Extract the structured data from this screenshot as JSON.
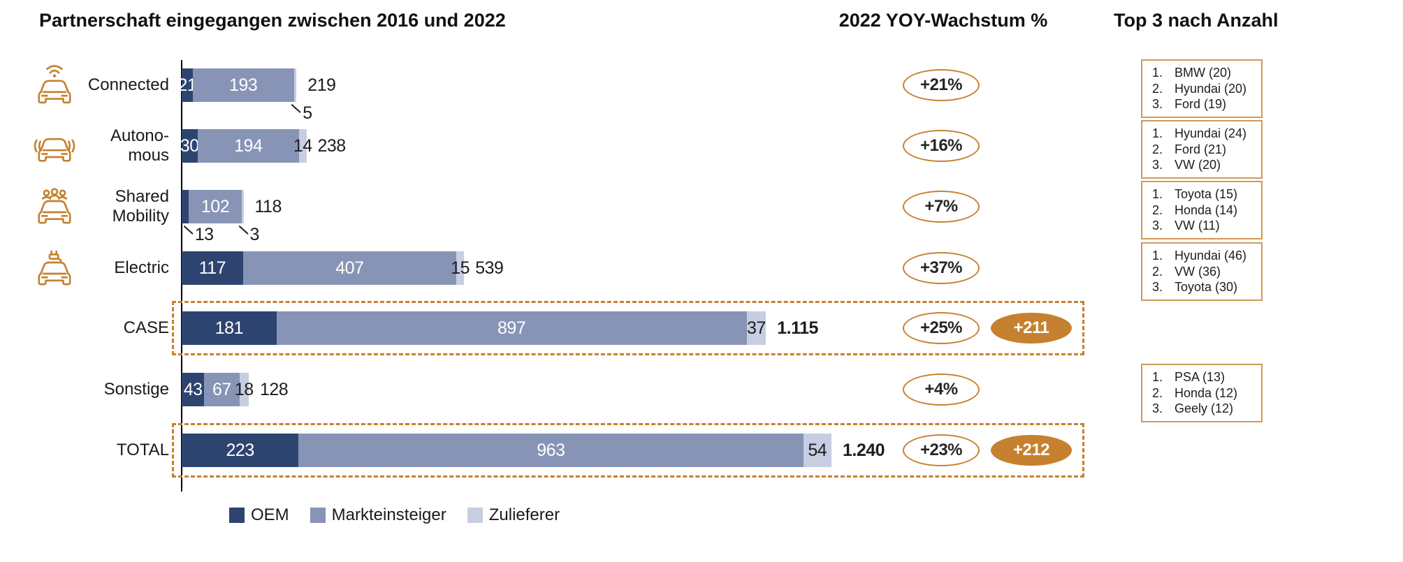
{
  "title": "Partnerschaft eingegangen zwischen 2016 und 2022",
  "headers": {
    "growth": "2022 YOY-Wachstum %",
    "top3": "Top 3 nach Anzahl"
  },
  "legend": [
    {
      "label": "OEM",
      "color": "#2e4470"
    },
    {
      "label": "Markteinsteiger",
      "color": "#8794b6"
    },
    {
      "label": "Zulieferer",
      "color": "#c7cde2"
    }
  ],
  "colors": {
    "accent": "#c5812f",
    "top3_border": "#cf9a57",
    "axis": "#000000",
    "text": "#1d1d1d"
  },
  "chart_data": {
    "type": "bar",
    "orientation": "horizontal-stacked",
    "series": [
      "OEM",
      "Markteinsteiger",
      "Zulieferer"
    ],
    "xlim": [
      0,
      1240
    ],
    "rows": [
      {
        "label_lines": [
          "Connected"
        ],
        "icon": "connected-car-icon",
        "values": [
          21,
          193,
          5
        ],
        "total": "219",
        "total_bold": false,
        "growth": "+21%",
        "delta": null,
        "highlight": false,
        "callout_segments": [
          2
        ],
        "top3": [
          {
            "rank": "1.",
            "entry": "BMW (20)"
          },
          {
            "rank": "2.",
            "entry": "Hyundai (20)"
          },
          {
            "rank": "3.",
            "entry": "Ford (19)"
          }
        ]
      },
      {
        "label_lines": [
          "Autono-",
          "mous"
        ],
        "icon": "autonomous-car-icon",
        "values": [
          30,
          194,
          14
        ],
        "total": "238",
        "total_bold": false,
        "growth": "+16%",
        "delta": null,
        "highlight": false,
        "callout_segments": [],
        "top3": [
          {
            "rank": "1.",
            "entry": "Hyundai (24)"
          },
          {
            "rank": "2.",
            "entry": "Ford (21)"
          },
          {
            "rank": "3.",
            "entry": "VW (20)"
          }
        ]
      },
      {
        "label_lines": [
          "Shared",
          "Mobility"
        ],
        "icon": "shared-mobility-car-icon",
        "values": [
          13,
          102,
          3
        ],
        "total": "118",
        "total_bold": false,
        "growth": "+7%",
        "delta": null,
        "highlight": false,
        "callout_segments": [
          0,
          2
        ],
        "top3": [
          {
            "rank": "1.",
            "entry": "Toyota (15)"
          },
          {
            "rank": "2.",
            "entry": "Honda (14)"
          },
          {
            "rank": "3.",
            "entry": "VW (11)"
          }
        ]
      },
      {
        "label_lines": [
          "Electric"
        ],
        "icon": "electric-car-icon",
        "values": [
          117,
          407,
          15
        ],
        "total": "539",
        "total_bold": false,
        "growth": "+37%",
        "delta": null,
        "highlight": false,
        "callout_segments": [],
        "top3": [
          {
            "rank": "1.",
            "entry": "Hyundai (46)"
          },
          {
            "rank": "2.",
            "entry": "VW (36)"
          },
          {
            "rank": "3.",
            "entry": "Toyota (30)"
          }
        ]
      },
      {
        "label_lines": [
          "CASE"
        ],
        "icon": null,
        "values": [
          181,
          897,
          37
        ],
        "total": "1.115",
        "total_bold": true,
        "growth": "+25%",
        "delta": "+211",
        "highlight": true,
        "callout_segments": [],
        "top3": null
      },
      {
        "label_lines": [
          "Sonstige"
        ],
        "icon": null,
        "values": [
          43,
          67,
          18
        ],
        "total": "128",
        "total_bold": false,
        "growth": "+4%",
        "delta": null,
        "highlight": false,
        "callout_segments": [],
        "top3": [
          {
            "rank": "1.",
            "entry": "PSA (13)"
          },
          {
            "rank": "2.",
            "entry": "Honda (12)"
          },
          {
            "rank": "3.",
            "entry": "Geely (12)"
          }
        ]
      },
      {
        "label_lines": [
          "TOTAL"
        ],
        "icon": null,
        "values": [
          223,
          963,
          54
        ],
        "total": "1.240",
        "total_bold": true,
        "growth": "+23%",
        "delta": "+212",
        "highlight": true,
        "callout_segments": [],
        "top3": null
      }
    ]
  }
}
